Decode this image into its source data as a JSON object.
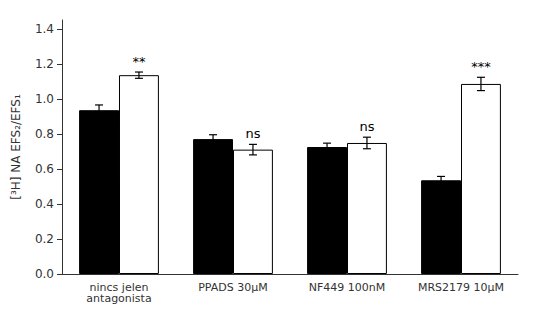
{
  "chart_data": {
    "type": "bar",
    "categories": [
      "nincs jelen\nantagonista",
      "PPADS 30μM",
      "NF449 100nM",
      "MRS2179 10μM"
    ],
    "ylabel": "[³H] NA EFS₂/EFS₁",
    "ylim": [
      0.0,
      1.45
    ],
    "yticks": [
      {
        "value": 0.0,
        "label": "0.0"
      },
      0.2,
      0.4,
      0.6,
      0.8,
      {
        "value": 1.0,
        "label": "1.0"
      },
      1.2,
      1.4
    ],
    "grid": false,
    "series": [
      {
        "color": "#000000",
        "values": [
          0.935,
          0.77,
          0.725,
          0.535
        ],
        "errors": [
          0.03,
          0.025,
          0.022,
          0.022
        ]
      },
      {
        "color": "#ffffff",
        "values": [
          1.135,
          0.71,
          0.748,
          1.085
        ],
        "errors": [
          0.018,
          0.03,
          0.033,
          0.038
        ],
        "annotations": [
          "**",
          "ns",
          "ns",
          "***"
        ]
      }
    ]
  }
}
